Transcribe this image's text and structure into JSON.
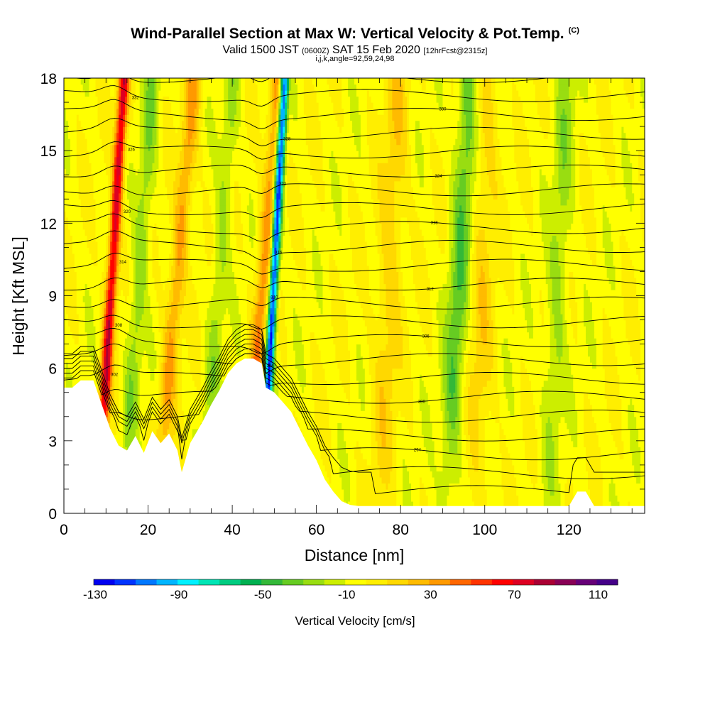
{
  "chart_data": {
    "type": "heatmap",
    "title": "Wind-Parallel Section at Max W: Vertical Velocity & Pot.Temp.",
    "title_mark": "(C)",
    "subtitle": {
      "valid": "Valid 1500 JST",
      "utc": "(0600Z)",
      "date": "SAT 15 Feb 2020",
      "forecast": "[12hrFcst@2315z]"
    },
    "indices_line": "i,j,k,angle=92,59,24,98",
    "xlabel": "Distance [nm]",
    "ylabel": "Height [Kft MSL]",
    "xlim": [
      0,
      138
    ],
    "ylim": [
      0,
      18
    ],
    "x_ticks": [
      "0",
      "20",
      "40",
      "60",
      "80",
      "100",
      "120"
    ],
    "y_ticks": [
      "0",
      "3",
      "6",
      "9",
      "12",
      "15",
      "18"
    ],
    "colorbar": {
      "title": "Vertical Velocity [cm/s]",
      "min": -130,
      "max": 120,
      "step": 10,
      "tick_labels": [
        "-130",
        "-90",
        "-50",
        "-10",
        "30",
        "70",
        "110"
      ],
      "colors": [
        "#0000f0",
        "#0033ff",
        "#0077ff",
        "#00b5ff",
        "#00f0ff",
        "#00e5b5",
        "#00cc80",
        "#00b050",
        "#33b838",
        "#66cc22",
        "#99dd11",
        "#ccee00",
        "#ffff00",
        "#ffee00",
        "#ffd800",
        "#ffbb00",
        "#ff9900",
        "#ff6600",
        "#ff3300",
        "#ff0000",
        "#dd0022",
        "#aa0033",
        "#880055",
        "#660077",
        "#440088"
      ]
    },
    "background_value": -3,
    "updrafts": [
      {
        "x_base": 8,
        "tilt": 0.35,
        "value": 80,
        "width": 1.3
      },
      {
        "x_base": 22,
        "tilt": 0.5,
        "value": 35,
        "width": 2.0
      },
      {
        "x_base": 43,
        "tilt": 0.45,
        "value": 40,
        "width": 1.8
      },
      {
        "x_base": 75,
        "tilt": 0.25,
        "value": 20,
        "width": 3.0
      },
      {
        "x_base": 98,
        "tilt": 0.15,
        "value": 18,
        "width": 3.0
      }
    ],
    "downdrafts": [
      {
        "x_base": 47,
        "tilt": 0.3,
        "value": -120,
        "width": 1.0
      },
      {
        "x_base": 14,
        "tilt": 0.4,
        "value": -25,
        "width": 2.0
      },
      {
        "x_base": 33,
        "tilt": 0.4,
        "value": -20,
        "width": 2.0
      },
      {
        "x_base": 91,
        "tilt": 0.3,
        "value": -35,
        "width": 2.5
      },
      {
        "x_base": 115,
        "tilt": 0.25,
        "value": -20,
        "width": 2.5
      }
    ],
    "terrain": {
      "x": [
        0,
        2,
        4,
        7,
        9,
        11,
        13,
        15,
        17,
        19,
        21,
        23,
        25,
        27,
        28,
        30,
        33,
        35,
        37,
        39,
        41,
        43,
        45,
        47,
        48,
        50,
        52,
        54,
        56,
        58,
        60,
        62,
        64,
        66,
        68,
        70,
        80,
        90,
        100,
        110,
        120,
        122,
        124,
        126,
        128,
        130,
        138
      ],
      "h": [
        5.2,
        5.2,
        5.5,
        5.5,
        4.5,
        3.5,
        2.8,
        2.6,
        3.2,
        2.5,
        3.4,
        2.9,
        3.3,
        2.6,
        1.7,
        2.9,
        3.8,
        4.5,
        5.1,
        5.8,
        6.2,
        6.4,
        6.4,
        6.2,
        5.2,
        5.0,
        4.6,
        4.2,
        3.5,
        2.8,
        2.2,
        1.4,
        0.9,
        0.5,
        0.35,
        0.3,
        0.3,
        0.3,
        0.3,
        0.3,
        0.3,
        0.9,
        0.9,
        0.3,
        0.3,
        0.3,
        0.3
      ]
    },
    "contour_labels": [
      "290",
      "292",
      "294",
      "296",
      "298",
      "300",
      "302",
      "304",
      "306",
      "308",
      "310",
      "312",
      "314",
      "316",
      "318",
      "320",
      "322",
      "324",
      "326",
      "328",
      "330",
      "332",
      "334"
    ]
  }
}
